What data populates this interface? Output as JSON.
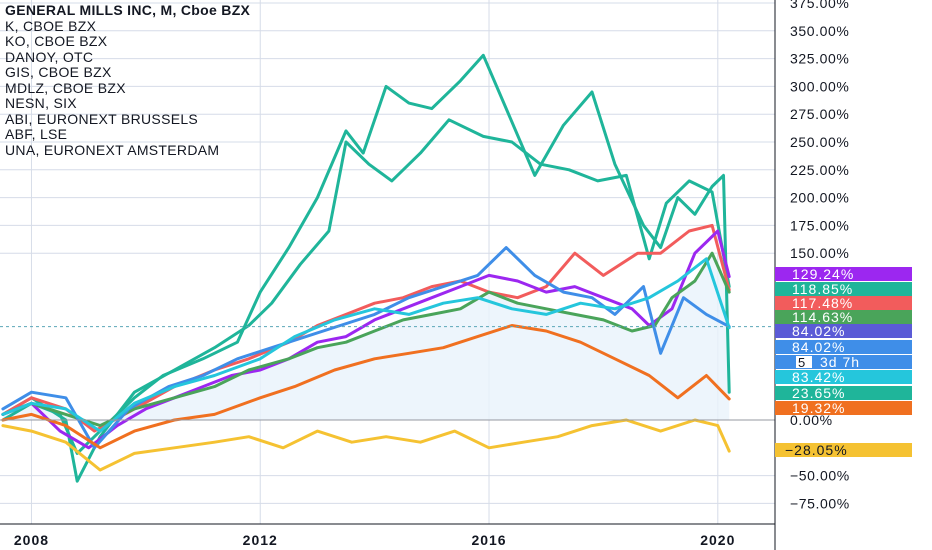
{
  "colors": {
    "grid": "#d6dce8",
    "text": "#131722",
    "zero_line": "#9598a1",
    "fill": "#e9f2fb",
    "cursor": "#5ba6b8"
  },
  "legend": {
    "main": "GENERAL MILLS INC, M, Cboe BZX",
    "items": [
      "K, CBOE BZX",
      "KO, CBOE BZX",
      "DANOY, OTC",
      "GIS, CBOE BZX",
      "MDLZ, CBOE BZX",
      "NESN, SIX",
      "ABI, EURONEXT BRUSSELS",
      "ABF, LSE",
      "UNA, EURONEXT AMSTERDAM"
    ]
  },
  "badges": [
    {
      "label": "129.24%",
      "color": "#9c27f0",
      "level": 129.24
    },
    {
      "label": "118.85%",
      "color": "#1fb59a",
      "level": 118.85
    },
    {
      "label": "117.48%",
      "color": "#f25c5c",
      "level": 117.48
    },
    {
      "label": "114.63%",
      "color": "#4aa45a",
      "level": 114.63
    },
    {
      "label": "84.02%",
      "color": "#5b5bd6",
      "level": 84.02
    },
    {
      "label": "84.02%",
      "color": "#3f8ee8",
      "level": 84.02
    },
    {
      "label": "3d 7h",
      "color": "#3f8ee8",
      "level": 84.02,
      "prefix": "5"
    },
    {
      "label": "83.42%",
      "color": "#25c6dc",
      "level": 83.42
    },
    {
      "label": "23.65%",
      "color": "#1fb59a",
      "level": 23.65
    },
    {
      "label": "19.32%",
      "color": "#f07020",
      "level": 19.32
    },
    {
      "label": "−28.05%",
      "color": "#f5c232",
      "level": -28.05
    }
  ],
  "chart_data": {
    "type": "line",
    "title": "GENERAL MILLS INC, M, Cboe BZX",
    "y_unit": "%",
    "ylim": [
      -100,
      375
    ],
    "y_ticks": [
      "375.00%",
      "350.00%",
      "325.00%",
      "300.00%",
      "275.00%",
      "250.00%",
      "225.00%",
      "200.00%",
      "175.00%",
      "150.00%",
      "0.00%",
      "−50.00%",
      "−75.00%"
    ],
    "y_tick_values": [
      375,
      350,
      325,
      300,
      275,
      250,
      225,
      200,
      175,
      150,
      0,
      -50,
      -75
    ],
    "x_ticks": [
      "2008",
      "2012",
      "2016",
      "2020"
    ],
    "x_tick_values": [
      2008,
      2012,
      2016,
      2020
    ],
    "xlim": [
      2007.45,
      2021.0
    ],
    "grid": true,
    "series": [
      {
        "name": "ABI, EURONEXT BRUSSELS",
        "color": "#1fb59a",
        "x": [
          2007.5,
          2008.0,
          2008.5,
          2008.8,
          2009.2,
          2009.8,
          2010.3,
          2011.0,
          2011.6,
          2012.0,
          2012.5,
          2013.0,
          2013.5,
          2013.8,
          2014.2,
          2014.6,
          2015.0,
          2015.5,
          2015.9,
          2016.3,
          2016.8,
          2017.3,
          2017.8,
          2018.2,
          2018.7,
          2019.0,
          2019.3,
          2019.6,
          2019.9,
          2020.1,
          2020.2
        ],
        "y": [
          0,
          15,
          5,
          -30,
          -10,
          20,
          40,
          55,
          70,
          115,
          155,
          200,
          260,
          240,
          300,
          285,
          280,
          305,
          328,
          280,
          220,
          265,
          295,
          230,
          175,
          155,
          200,
          185,
          210,
          220,
          25
        ]
      },
      {
        "name": "DANOY, OTC",
        "color": "#1fb59a",
        "x": [
          2007.5,
          2008.0,
          2008.6,
          2008.8,
          2009.2,
          2009.8,
          2010.5,
          2011.2,
          2011.8,
          2012.2,
          2012.7,
          2013.2,
          2013.5,
          2013.9,
          2014.3,
          2014.8,
          2015.3,
          2015.9,
          2016.4,
          2016.9,
          2017.4,
          2017.9,
          2018.4,
          2018.8,
          2019.1,
          2019.5,
          2019.9,
          2020.2
        ],
        "y": [
          5,
          20,
          0,
          -55,
          -15,
          25,
          45,
          65,
          85,
          105,
          140,
          170,
          250,
          230,
          215,
          240,
          270,
          255,
          250,
          230,
          225,
          215,
          220,
          145,
          195,
          215,
          205,
          120
        ]
      },
      {
        "name": "KO, CBOE BZX",
        "color": "#f25c5c",
        "x": [
          2007.5,
          2008.0,
          2008.6,
          2009.1,
          2009.8,
          2010.5,
          2011.2,
          2011.8,
          2012.5,
          2013.0,
          2013.5,
          2014.0,
          2014.5,
          2015.0,
          2015.5,
          2016.0,
          2016.5,
          2017.0,
          2017.5,
          2018.0,
          2018.6,
          2019.0,
          2019.5,
          2019.9,
          2020.2
        ],
        "y": [
          5,
          20,
          10,
          -10,
          10,
          30,
          45,
          55,
          70,
          85,
          95,
          105,
          110,
          120,
          125,
          115,
          110,
          120,
          150,
          130,
          150,
          150,
          170,
          175,
          117
        ]
      },
      {
        "name": "K, CBOE BZX",
        "color": "#9c27f0",
        "x": [
          2007.5,
          2008.0,
          2008.5,
          2009.0,
          2009.5,
          2010.0,
          2010.5,
          2011.0,
          2011.5,
          2012.0,
          2012.5,
          2013.0,
          2013.5,
          2014.0,
          2014.5,
          2015.0,
          2015.5,
          2016.0,
          2016.5,
          2017.0,
          2017.5,
          2018.0,
          2018.5,
          2018.8,
          2019.2,
          2019.6,
          2020.0,
          2020.2
        ],
        "y": [
          5,
          15,
          -10,
          -25,
          -5,
          10,
          20,
          30,
          40,
          45,
          55,
          70,
          75,
          90,
          100,
          110,
          120,
          130,
          125,
          115,
          120,
          110,
          100,
          85,
          100,
          150,
          170,
          129
        ]
      },
      {
        "name": "GIS, CBOE BZX",
        "color": "#4aa45a",
        "x": [
          2007.5,
          2008.0,
          2008.6,
          2009.2,
          2009.8,
          2010.5,
          2011.2,
          2011.8,
          2012.5,
          2013.0,
          2013.5,
          2014.0,
          2014.5,
          2015.0,
          2015.5,
          2016.0,
          2016.5,
          2017.0,
          2017.5,
          2018.0,
          2018.5,
          2018.9,
          2019.2,
          2019.6,
          2019.9,
          2020.2
        ],
        "y": [
          5,
          15,
          5,
          -5,
          10,
          20,
          30,
          45,
          55,
          65,
          70,
          80,
          90,
          95,
          100,
          115,
          105,
          100,
          95,
          90,
          80,
          85,
          110,
          125,
          150,
          115
        ]
      },
      {
        "name": "MDLZ, CBOE BZX",
        "color": "#3f8ee8",
        "x": [
          2007.5,
          2008.0,
          2008.6,
          2009.1,
          2009.7,
          2010.4,
          2011.0,
          2011.6,
          2012.2,
          2012.8,
          2013.4,
          2014.0,
          2014.6,
          2015.2,
          2015.8,
          2016.3,
          2016.8,
          2017.3,
          2017.8,
          2018.2,
          2018.7,
          2019.0,
          2019.4,
          2019.8,
          2020.2
        ],
        "y": [
          10,
          25,
          20,
          -25,
          10,
          30,
          40,
          55,
          65,
          75,
          85,
          95,
          110,
          120,
          130,
          155,
          130,
          115,
          110,
          95,
          120,
          60,
          110,
          95,
          84
        ]
      },
      {
        "name": "NESN, SIX",
        "color": "#25c6dc",
        "x": [
          2007.5,
          2008.0,
          2008.6,
          2009.2,
          2009.8,
          2010.5,
          2011.2,
          2012.0,
          2012.6,
          2013.3,
          2014.0,
          2014.6,
          2015.2,
          2015.8,
          2016.4,
          2017.0,
          2017.6,
          2018.2,
          2018.8,
          2019.3,
          2019.8,
          2020.2
        ],
        "y": [
          5,
          15,
          10,
          -10,
          15,
          30,
          40,
          55,
          75,
          90,
          100,
          95,
          105,
          110,
          100,
          95,
          105,
          100,
          110,
          125,
          145,
          83
        ]
      },
      {
        "name": "ABF, LSE",
        "color": "#f07020",
        "x": [
          2007.5,
          2008.0,
          2008.6,
          2009.2,
          2009.8,
          2010.5,
          2011.2,
          2012.0,
          2012.6,
          2013.3,
          2014.0,
          2014.6,
          2015.2,
          2015.8,
          2016.4,
          2017.0,
          2017.6,
          2018.2,
          2018.8,
          2019.3,
          2019.8,
          2020.2
        ],
        "y": [
          0,
          5,
          -5,
          -25,
          -10,
          0,
          5,
          20,
          30,
          45,
          55,
          60,
          65,
          75,
          85,
          80,
          70,
          55,
          40,
          20,
          40,
          19
        ]
      },
      {
        "name": "UNA, EURONEXT AMSTERDAM",
        "color": "#f5c232",
        "x": [
          2007.5,
          2008.0,
          2008.6,
          2009.2,
          2009.8,
          2010.5,
          2011.2,
          2011.8,
          2012.4,
          2013.0,
          2013.6,
          2014.2,
          2014.8,
          2015.4,
          2016.0,
          2016.6,
          2017.2,
          2017.8,
          2018.4,
          2019.0,
          2019.6,
          2020.0,
          2020.2
        ],
        "y": [
          -5,
          -10,
          -20,
          -45,
          -30,
          -25,
          -20,
          -15,
          -25,
          -10,
          -20,
          -15,
          -20,
          -10,
          -25,
          -20,
          -15,
          -5,
          0,
          -10,
          0,
          -5,
          -28
        ]
      }
    ]
  }
}
